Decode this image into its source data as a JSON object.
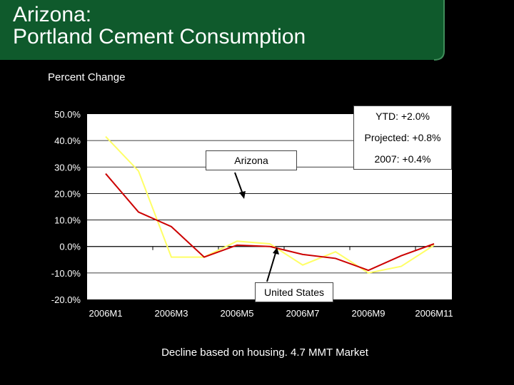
{
  "slide": {
    "title_line1": "Arizona:",
    "title_line2": "Portland Cement Consumption",
    "subtitle": "Percent Change",
    "footnote": "Decline based on housing. 4.7 MMT Market",
    "colors": {
      "banner": "#0f5a2c",
      "banner_light": "#3f8d5a",
      "background": "#000000"
    }
  },
  "callouts": {
    "ytd": "YTD: +2.0%",
    "projected": "Projected: +0.8%",
    "year2007": "2007: +0.4%",
    "arizona": "Arizona",
    "united_states": "United States"
  },
  "chart_data": {
    "type": "line",
    "x": [
      "2006M1",
      "2006M2",
      "2006M3",
      "2006M4",
      "2006M5",
      "2006M6",
      "2006M7",
      "2006M8",
      "2006M9",
      "2006M10",
      "2006M11"
    ],
    "tick_labels": [
      "2006M1",
      "2006M3",
      "2006M5",
      "2006M7",
      "2006M9",
      "2006M11"
    ],
    "y_ticks": [
      "50.0%",
      "40.0%",
      "30.0%",
      "20.0%",
      "10.0%",
      "0.0%",
      "-10.0%",
      "-20.0%"
    ],
    "ylim": [
      -20,
      50
    ],
    "grid": true,
    "series": [
      {
        "name": "Arizona",
        "color": "#ffff66",
        "values": [
          41.5,
          28.5,
          -4,
          -4,
          2,
          1,
          -7,
          -2,
          -10,
          -7.5,
          0.5
        ]
      },
      {
        "name": "United States",
        "color": "#cc0000",
        "values": [
          27.5,
          13,
          7.5,
          -4,
          0.5,
          0,
          -3,
          -4.5,
          -9,
          -3.5,
          1
        ]
      }
    ]
  }
}
